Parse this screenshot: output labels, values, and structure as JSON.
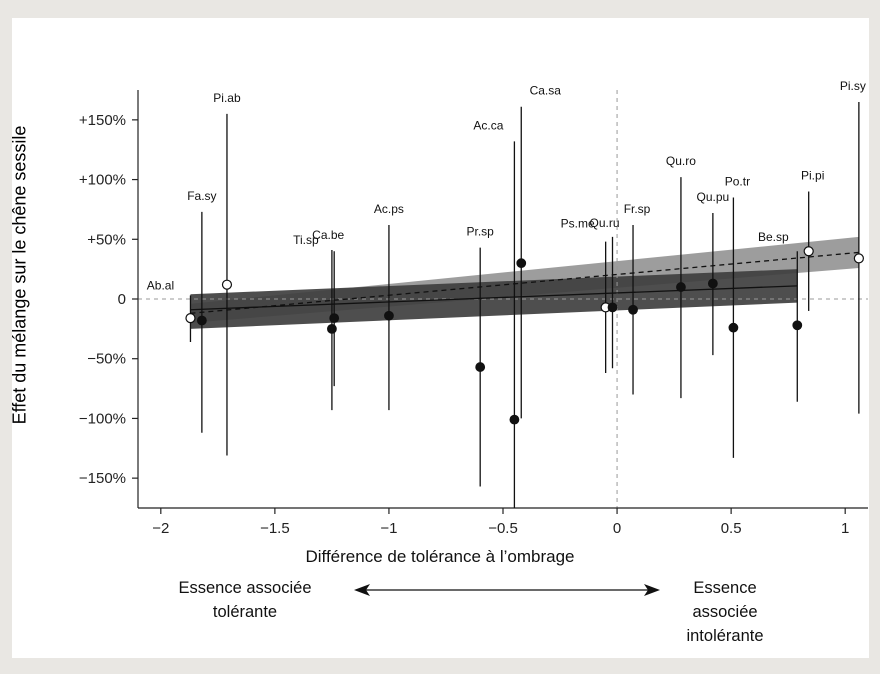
{
  "page": {
    "x_title": "Différence de tolérance à l’ombrage",
    "y_title": "Effet du mélange sur le chêne sessile",
    "left_annotation": [
      "Essence associée",
      "tolérante"
    ],
    "right_annotation": [
      "Essence associée",
      "intolérante"
    ]
  },
  "colors": {
    "background": "#e9e7e3",
    "plot_background": "#ffffff",
    "band_dark": "#3f3f3f",
    "band_light": "#8c8c8c",
    "points": "#111111"
  },
  "chart_data": {
    "type": "scatter",
    "title": "",
    "xlabel": "Différence de tolérance à l’ombrage",
    "ylabel": "Effet du mélange sur le chêne sessile",
    "xlim": [
      -2.1,
      1.1
    ],
    "ylim": [
      -175,
      175
    ],
    "x_ticks": [
      -2,
      -1.5,
      -1,
      -0.5,
      0,
      0.5,
      1
    ],
    "x_tick_labels": [
      "−2",
      "−1.5",
      "−1",
      "−0.5",
      "0",
      "0.5",
      "1"
    ],
    "y_ticks": [
      150,
      100,
      50,
      0,
      -50,
      -100,
      -150
    ],
    "y_tick_labels": [
      "+150%",
      "+100%",
      "+50%",
      "0",
      "−50%",
      "−100%",
      "−150%"
    ],
    "grid": false,
    "reference_lines": {
      "y": 0,
      "x": 0,
      "style": "dashed"
    },
    "series": [
      {
        "marker": "open",
        "points": [
          {
            "label": "Ab.al",
            "x": -1.87,
            "y": -16,
            "lo": -36,
            "hi": 3
          },
          {
            "label": "Pi.ab",
            "x": -1.71,
            "y": 12,
            "lo": -131,
            "hi": 155
          },
          {
            "label": "Ps.me",
            "x": -0.05,
            "y": -7,
            "lo": -62,
            "hi": 48
          },
          {
            "label": "Pi.pi",
            "x": 0.84,
            "y": 40,
            "lo": -10,
            "hi": 90
          },
          {
            "label": "Pi.sy",
            "x": 1.06,
            "y": 34,
            "lo": -96,
            "hi": 165
          }
        ]
      },
      {
        "marker": "filled",
        "points": [
          {
            "label": "Fa.sy",
            "x": -1.82,
            "y": -18,
            "lo": -112,
            "hi": 73
          },
          {
            "label": "Ti.sp",
            "x": -1.25,
            "y": -25,
            "lo": -93,
            "hi": 41
          },
          {
            "label": "Ca.be",
            "x": -1.24,
            "y": -16,
            "lo": -73,
            "hi": 40
          },
          {
            "label": "Ac.ps",
            "x": -1.0,
            "y": -14,
            "lo": -93,
            "hi": 62
          },
          {
            "label": "Pr.sp",
            "x": -0.6,
            "y": -57,
            "lo": -157,
            "hi": 43
          },
          {
            "label": "Ac.ca",
            "x": -0.45,
            "y": -101,
            "lo": -180,
            "hi": 132
          },
          {
            "label": "Ca.sa",
            "x": -0.42,
            "y": 30,
            "lo": -100,
            "hi": 161
          },
          {
            "label": "Qu.ru",
            "x": -0.02,
            "y": -7,
            "lo": -58,
            "hi": 52
          },
          {
            "label": "Fr.sp",
            "x": 0.07,
            "y": -9,
            "lo": -80,
            "hi": 62
          },
          {
            "label": "Qu.ro",
            "x": 0.28,
            "y": 10,
            "lo": -83,
            "hi": 102
          },
          {
            "label": "Qu.pu",
            "x": 0.42,
            "y": 13,
            "lo": -47,
            "hi": 72
          },
          {
            "label": "Po.tr",
            "x": 0.51,
            "y": -24,
            "lo": -133,
            "hi": 85
          },
          {
            "label": "Be.sp",
            "x": 0.79,
            "y": -22,
            "lo": -86,
            "hi": 40
          }
        ]
      }
    ],
    "fits": [
      {
        "style": "solid",
        "x_range": [
          -1.87,
          0.79
        ],
        "y_range": [
          -9,
          11
        ],
        "band_lower": [
          -25,
          -3
        ],
        "band_upper": [
          4,
          25
        ],
        "band_color": "dark"
      },
      {
        "style": "dashed",
        "x_range": [
          -1.87,
          1.06
        ],
        "y_range": [
          -12,
          39
        ],
        "band_lower": [
          -20,
          26
        ],
        "band_upper": [
          -4,
          52
        ],
        "band_color": "light"
      }
    ]
  }
}
